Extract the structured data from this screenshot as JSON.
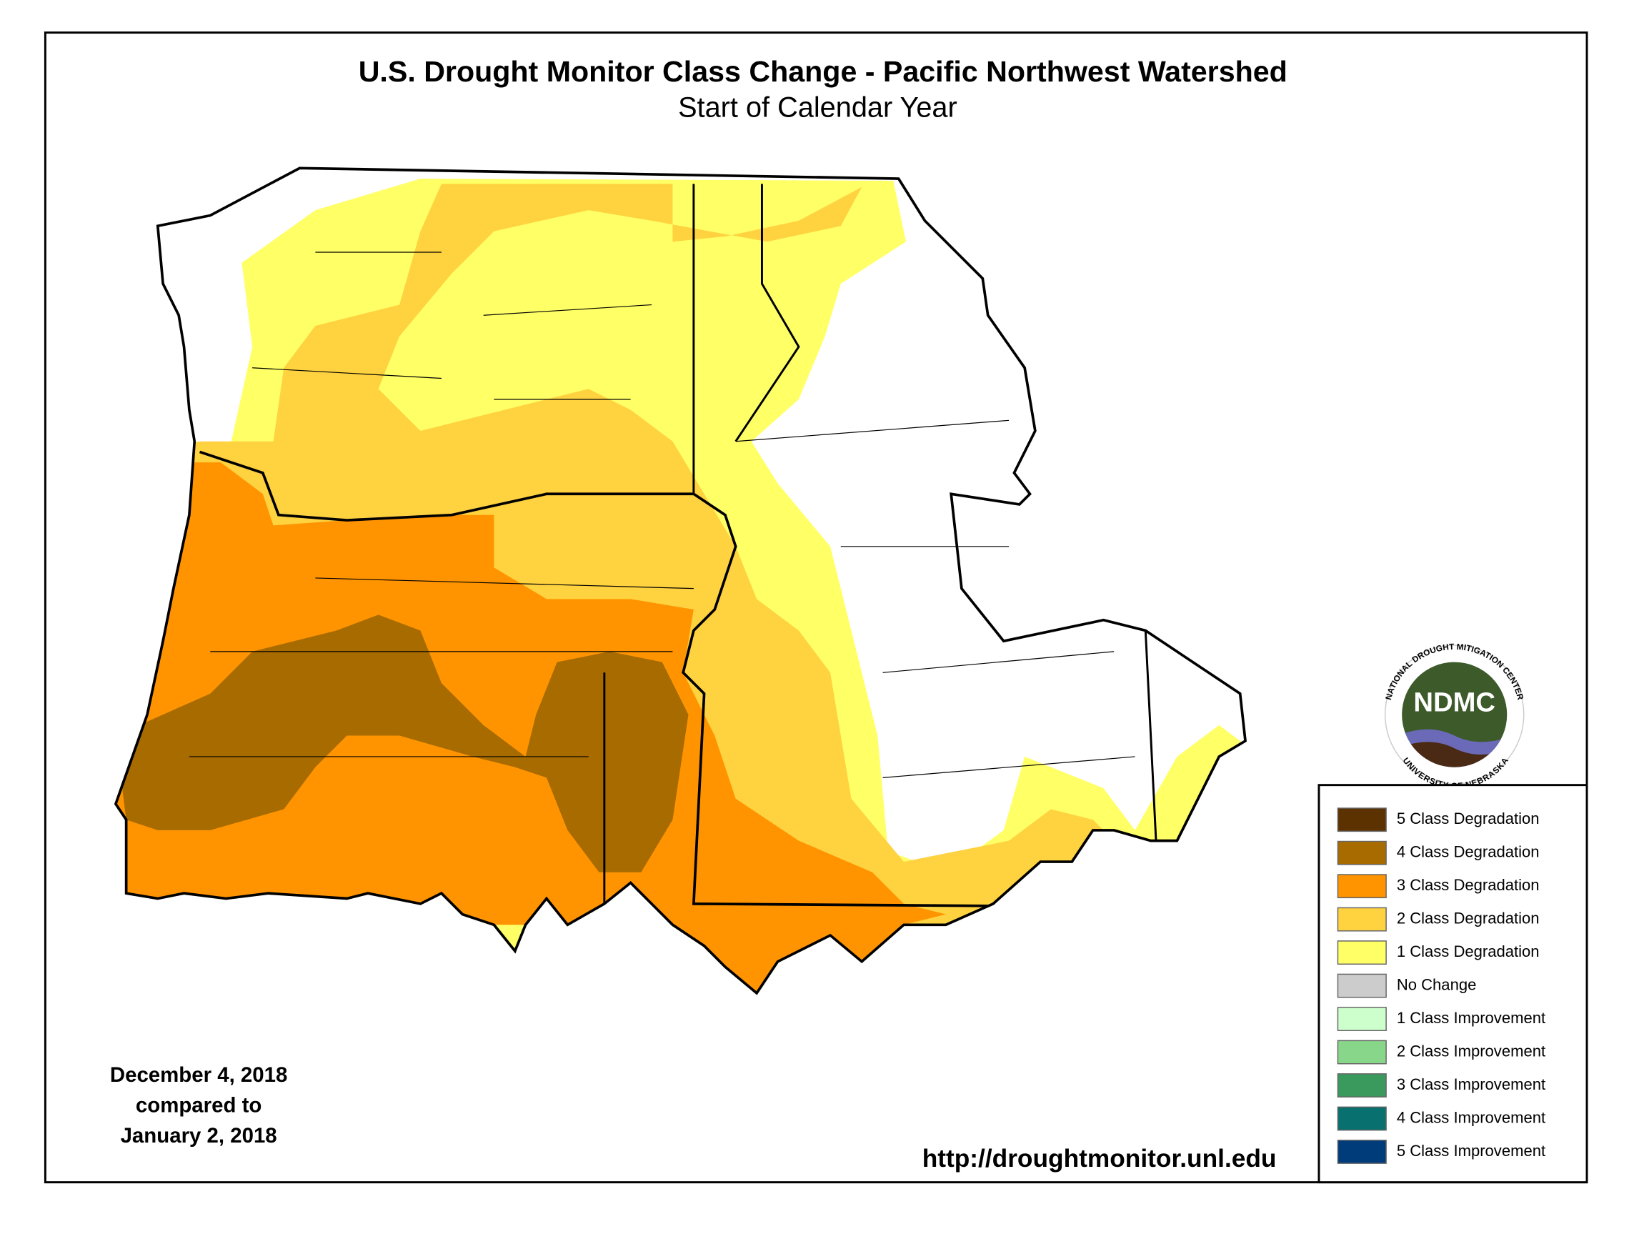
{
  "header": {
    "title": "U.S. Drought Monitor Class Change - Pacific Northwest Watershed",
    "subtitle": "Start of Calendar Year"
  },
  "date_note": [
    "December 4, 2018",
    "compared to",
    "January 2, 2018"
  ],
  "url": "http://droughtmonitor.unl.edu",
  "legend": [
    {
      "label": "5 Class Degradation",
      "color": "#5c3200"
    },
    {
      "label": "4 Class Degradation",
      "color": "#a86b00"
    },
    {
      "label": "3 Class Degradation",
      "color": "#ff9400"
    },
    {
      "label": "2 Class Degradation",
      "color": "#ffd240"
    },
    {
      "label": "1 Class Degradation",
      "color": "#ffff66"
    },
    {
      "label": "No Change",
      "color": "#cccccc"
    },
    {
      "label": "1 Class Improvement",
      "color": "#ccffcc"
    },
    {
      "label": "2 Class Improvement",
      "color": "#88d68a"
    },
    {
      "label": "3 Class Improvement",
      "color": "#3a9a5e"
    },
    {
      "label": "4 Class Improvement",
      "color": "#08706e"
    },
    {
      "label": "5 Class Improvement",
      "color": "#003c7a"
    }
  ],
  "logo": {
    "name": "NDMC",
    "ring_top": "NATIONAL DROUGHT MITIGATION CENTER",
    "ring_bottom": "UNIVERSITY OF NEBRASKA"
  }
}
